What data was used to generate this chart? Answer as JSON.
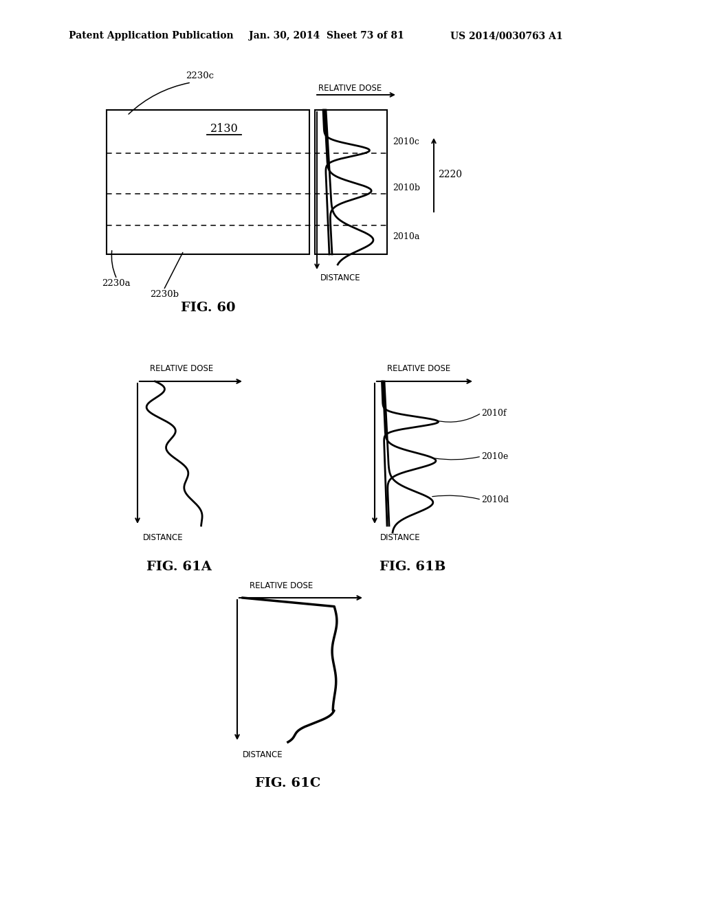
{
  "bg_color": "#ffffff",
  "header_text": "Patent Application Publication",
  "header_date": "Jan. 30, 2014  Sheet 73 of 81",
  "header_patent": "US 2014/0030763 A1",
  "fig60_label": "FIG. 60",
  "fig61a_label": "FIG. 61A",
  "fig61b_label": "FIG. 61B",
  "fig61c_label": "FIG. 61C",
  "label_2130": "2130",
  "label_2230a": "2230a",
  "label_2230b": "2230b",
  "label_2230c": "2230c",
  "label_2220": "2220",
  "label_2010a": "2010a",
  "label_2010b": "2010b",
  "label_2010c": "2010c",
  "label_2010d": "2010d",
  "label_2010e": "2010e",
  "label_2010f": "2010f",
  "text_relative_dose": "RELATIVE DOSE",
  "text_distance": "DISTANCE",
  "line_color": "#000000",
  "line_width": 1.8
}
